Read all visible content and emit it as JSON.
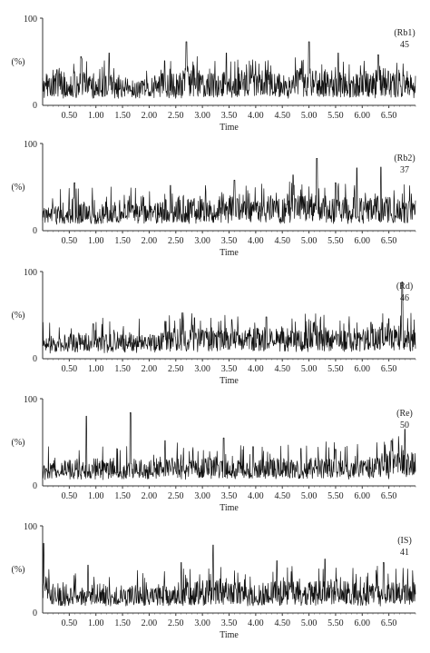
{
  "chart_data": [
    {
      "type": "line",
      "label": "(Rb1)",
      "number": "45",
      "ylabel": "(%)",
      "xlabel": "Time",
      "ylim": [
        0,
        100
      ],
      "xlim": [
        0.0,
        7.0
      ],
      "y_ticks": [
        "0",
        "100"
      ],
      "x_ticks": [
        "0.50",
        "1.00",
        "1.50",
        "2.00",
        "2.50",
        "3.00",
        "3.50",
        "4.00",
        "4.50",
        "5.00",
        "5.50",
        "6.00",
        "6.50"
      ],
      "series": [
        {
          "x": [
            0.0,
            0.25,
            0.5,
            0.75,
            1.0,
            1.25,
            1.5,
            1.75,
            2.0,
            2.25,
            2.5,
            2.75,
            3.0,
            3.25,
            3.5,
            3.75,
            4.0,
            4.25,
            4.5,
            4.75,
            5.0,
            5.25,
            5.5,
            5.75,
            6.0,
            6.25,
            6.5,
            6.75,
            7.0
          ],
          "y": [
            22,
            30,
            25,
            28,
            20,
            26,
            24,
            18,
            22,
            27,
            25,
            30,
            28,
            26,
            29,
            27,
            25,
            30,
            24,
            28,
            32,
            26,
            29,
            24,
            27,
            30,
            28,
            25,
            26
          ],
          "peaks": [
            [
              0.72,
              56
            ],
            [
              1.25,
              60
            ],
            [
              2.7,
              73
            ],
            [
              3.45,
              60
            ],
            [
              5.0,
              73
            ],
            [
              5.55,
              60
            ],
            [
              6.3,
              58
            ]
          ]
        }
      ]
    },
    {
      "type": "line",
      "label": "(Rb2)",
      "number": "37",
      "ylabel": "(%)",
      "xlabel": "Time",
      "ylim": [
        0,
        100
      ],
      "xlim": [
        0.0,
        7.0
      ],
      "y_ticks": [
        "0",
        "100"
      ],
      "x_ticks": [
        "0.50",
        "1.00",
        "1.50",
        "2.00",
        "2.50",
        "3.00",
        "3.50",
        "4.00",
        "4.50",
        "5.00",
        "5.50",
        "6.00",
        "6.50"
      ],
      "series": [
        {
          "x": [
            0.0,
            0.25,
            0.5,
            0.75,
            1.0,
            1.25,
            1.5,
            1.75,
            2.0,
            2.25,
            2.5,
            2.75,
            3.0,
            3.25,
            3.5,
            3.75,
            4.0,
            4.25,
            4.5,
            4.75,
            5.0,
            5.25,
            5.5,
            5.75,
            6.0,
            6.25,
            6.5,
            6.75,
            7.0
          ],
          "y": [
            18,
            20,
            22,
            24,
            20,
            22,
            25,
            22,
            20,
            24,
            28,
            26,
            25,
            27,
            28,
            26,
            25,
            28,
            27,
            29,
            30,
            28,
            27,
            26,
            28,
            30,
            27,
            25,
            24
          ],
          "peaks": [
            [
              0.6,
              55
            ],
            [
              2.4,
              52
            ],
            [
              3.6,
              58
            ],
            [
              4.7,
              64
            ],
            [
              5.15,
              83
            ],
            [
              5.5,
              55
            ],
            [
              5.9,
              72
            ],
            [
              6.35,
              73
            ]
          ]
        }
      ]
    },
    {
      "type": "line",
      "label": "(Rd)",
      "number": "46",
      "ylabel": "(%)",
      "xlabel": "Time",
      "ylim": [
        0,
        100
      ],
      "xlim": [
        0.0,
        7.0
      ],
      "y_ticks": [
        "0",
        "100"
      ],
      "x_ticks": [
        "0.50",
        "1.00",
        "1.50",
        "2.00",
        "2.50",
        "3.00",
        "3.50",
        "4.00",
        "4.50",
        "5.00",
        "5.50",
        "6.00",
        "6.50"
      ],
      "series": [
        {
          "x": [
            0.0,
            0.25,
            0.5,
            0.75,
            1.0,
            1.25,
            1.5,
            1.75,
            2.0,
            2.25,
            2.5,
            2.75,
            3.0,
            3.25,
            3.5,
            3.75,
            4.0,
            4.25,
            4.5,
            4.75,
            5.0,
            5.25,
            5.5,
            5.75,
            6.0,
            6.25,
            6.5,
            6.75,
            7.0
          ],
          "y": [
            15,
            18,
            20,
            22,
            18,
            20,
            22,
            18,
            20,
            22,
            24,
            26,
            24,
            25,
            24,
            26,
            25,
            24,
            26,
            22,
            24,
            25,
            23,
            22,
            24,
            26,
            25,
            28,
            24
          ],
          "peaks": [
            [
              0.95,
              40
            ],
            [
              2.3,
              43
            ],
            [
              2.85,
              47
            ],
            [
              3.55,
              45
            ],
            [
              4.2,
              48
            ],
            [
              5.1,
              42
            ],
            [
              6.5,
              46
            ],
            [
              6.75,
              88
            ]
          ]
        }
      ]
    },
    {
      "type": "line",
      "label": "(Re)",
      "number": "50",
      "ylabel": "(%)",
      "xlabel": "Time",
      "ylim": [
        0,
        100
      ],
      "xlim": [
        0.0,
        7.0
      ],
      "y_ticks": [
        "0",
        "100"
      ],
      "x_ticks": [
        "0.50",
        "1.00",
        "1.50",
        "2.00",
        "2.50",
        "3.00",
        "3.50",
        "4.00",
        "4.50",
        "5.00",
        "5.50",
        "6.00",
        "6.50"
      ],
      "series": [
        {
          "x": [
            0.0,
            0.25,
            0.5,
            0.75,
            1.0,
            1.25,
            1.5,
            1.75,
            2.0,
            2.25,
            2.5,
            2.75,
            3.0,
            3.25,
            3.5,
            3.75,
            4.0,
            4.25,
            4.5,
            4.75,
            5.0,
            5.25,
            5.5,
            5.75,
            6.0,
            6.25,
            6.5,
            6.75,
            7.0
          ],
          "y": [
            18,
            20,
            22,
            20,
            22,
            18,
            20,
            22,
            20,
            24,
            22,
            20,
            22,
            24,
            22,
            20,
            22,
            24,
            22,
            20,
            22,
            23,
            22,
            20,
            22,
            24,
            28,
            30,
            26
          ],
          "peaks": [
            [
              0.82,
              80
            ],
            [
              1.65,
              84
            ],
            [
              2.3,
              52
            ],
            [
              3.4,
              55
            ],
            [
              3.95,
              45
            ],
            [
              4.85,
              43
            ],
            [
              5.5,
              42
            ],
            [
              6.55,
              52
            ],
            [
              6.8,
              65
            ]
          ]
        }
      ]
    },
    {
      "type": "line",
      "label": "(IS)",
      "number": "41",
      "ylabel": "(%)",
      "xlabel": "Time",
      "ylim": [
        0,
        100
      ],
      "xlim": [
        0.0,
        7.0
      ],
      "y_ticks": [
        "0",
        "100"
      ],
      "x_ticks": [
        "0.50",
        "1.00",
        "1.50",
        "2.00",
        "2.50",
        "3.00",
        "3.50",
        "4.00",
        "4.50",
        "5.00",
        "5.50",
        "6.00",
        "6.50"
      ],
      "series": [
        {
          "x": [
            0.0,
            0.25,
            0.5,
            0.75,
            1.0,
            1.25,
            1.5,
            1.75,
            2.0,
            2.25,
            2.5,
            2.75,
            3.0,
            3.25,
            3.5,
            3.75,
            4.0,
            4.25,
            4.5,
            4.75,
            5.0,
            5.25,
            5.5,
            5.75,
            6.0,
            6.25,
            6.5,
            6.75,
            7.0
          ],
          "y": [
            30,
            25,
            22,
            20,
            24,
            22,
            20,
            22,
            20,
            24,
            22,
            25,
            26,
            28,
            26,
            24,
            22,
            26,
            28,
            26,
            24,
            26,
            28,
            26,
            24,
            26,
            25,
            24,
            28
          ],
          "peaks": [
            [
              0.02,
              80
            ],
            [
              0.85,
              55
            ],
            [
              2.6,
              58
            ],
            [
              3.2,
              78
            ],
            [
              4.4,
              60
            ],
            [
              5.3,
              62
            ],
            [
              6.4,
              58
            ]
          ]
        }
      ]
    }
  ]
}
